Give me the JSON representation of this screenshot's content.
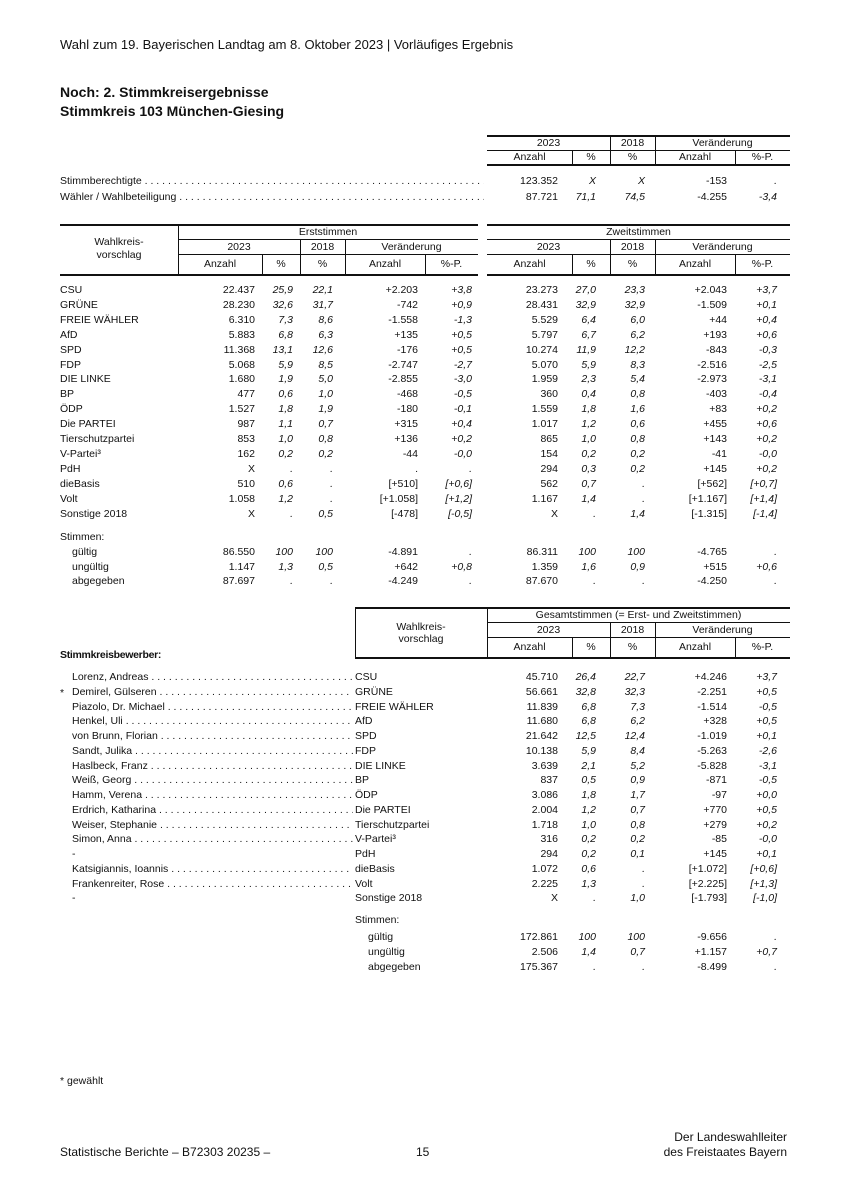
{
  "running_header": "Wahl zum 19. Bayerischen Landtag am 8. Oktober 2023 | Vorläufiges Ergebnis",
  "title1": "Noch: 2. Stimmkreisergebnisse",
  "title2": "Stimmkreis 103 München-Giesing",
  "headers": {
    "year_2023": "2023",
    "year_2018": "2018",
    "change": "Veränderung",
    "count": "Anzahl",
    "pct": "%",
    "pctp": "%-P.",
    "wahlkreis1": "Wahlkreis-",
    "wahlkreis2": "vorschlag",
    "erst": "Erststimmen",
    "zweit": "Zweitstimmen",
    "gesamt": "Gesamtstimmen (= Erst- und Zweitstimmen)",
    "bewerber": "Stimmkreisbewerber:"
  },
  "turnout": [
    {
      "label": "Stimmberechtigte",
      "v": [
        "123.352",
        "X",
        "X",
        "-153",
        "."
      ]
    },
    {
      "label": "Wähler / Wahlbeteiligung",
      "v": [
        "87.721",
        "71,1",
        "74,5",
        "-4.255",
        "-3,4"
      ]
    }
  ],
  "parties": [
    {
      "name": "CSU",
      "erst": [
        "22.437",
        "25,9",
        "22,1",
        "+2.203",
        "+3,8"
      ],
      "zweit": [
        "23.273",
        "27,0",
        "23,3",
        "+2.043",
        "+3,7"
      ]
    },
    {
      "name": "GRÜNE",
      "erst": [
        "28.230",
        "32,6",
        "31,7",
        "-742",
        "+0,9"
      ],
      "zweit": [
        "28.431",
        "32,9",
        "32,9",
        "-1.509",
        "+0,1"
      ]
    },
    {
      "name": "FREIE WÄHLER",
      "erst": [
        "6.310",
        "7,3",
        "8,6",
        "-1.558",
        "-1,3"
      ],
      "zweit": [
        "5.529",
        "6,4",
        "6,0",
        "+44",
        "+0,4"
      ]
    },
    {
      "name": "AfD",
      "erst": [
        "5.883",
        "6,8",
        "6,3",
        "+135",
        "+0,5"
      ],
      "zweit": [
        "5.797",
        "6,7",
        "6,2",
        "+193",
        "+0,6"
      ]
    },
    {
      "name": "SPD",
      "erst": [
        "11.368",
        "13,1",
        "12,6",
        "-176",
        "+0,5"
      ],
      "zweit": [
        "10.274",
        "11,9",
        "12,2",
        "-843",
        "-0,3"
      ]
    },
    {
      "name": "FDP",
      "erst": [
        "5.068",
        "5,9",
        "8,5",
        "-2.747",
        "-2,7"
      ],
      "zweit": [
        "5.070",
        "5,9",
        "8,3",
        "-2.516",
        "-2,5"
      ]
    },
    {
      "name": "DIE LINKE",
      "erst": [
        "1.680",
        "1,9",
        "5,0",
        "-2.855",
        "-3,0"
      ],
      "zweit": [
        "1.959",
        "2,3",
        "5,4",
        "-2.973",
        "-3,1"
      ]
    },
    {
      "name": "BP",
      "erst": [
        "477",
        "0,6",
        "1,0",
        "-468",
        "-0,5"
      ],
      "zweit": [
        "360",
        "0,4",
        "0,8",
        "-403",
        "-0,4"
      ]
    },
    {
      "name": "ÖDP",
      "erst": [
        "1.527",
        "1,8",
        "1,9",
        "-180",
        "-0,1"
      ],
      "zweit": [
        "1.559",
        "1,8",
        "1,6",
        "+83",
        "+0,2"
      ]
    },
    {
      "name": "Die PARTEI",
      "erst": [
        "987",
        "1,1",
        "0,7",
        "+315",
        "+0,4"
      ],
      "zweit": [
        "1.017",
        "1,2",
        "0,6",
        "+455",
        "+0,6"
      ]
    },
    {
      "name": "Tierschutzpartei",
      "erst": [
        "853",
        "1,0",
        "0,8",
        "+136",
        "+0,2"
      ],
      "zweit": [
        "865",
        "1,0",
        "0,8",
        "+143",
        "+0,2"
      ]
    },
    {
      "name": "V-Partei³",
      "erst": [
        "162",
        "0,2",
        "0,2",
        "-44",
        "-0,0"
      ],
      "zweit": [
        "154",
        "0,2",
        "0,2",
        "-41",
        "-0,0"
      ]
    },
    {
      "name": "PdH",
      "erst": [
        "X",
        ".",
        ".",
        ".",
        "."
      ],
      "zweit": [
        "294",
        "0,3",
        "0,2",
        "+145",
        "+0,2"
      ]
    },
    {
      "name": "dieBasis",
      "erst": [
        "510",
        "0,6",
        ".",
        "[+510]",
        "[+0,6]"
      ],
      "zweit": [
        "562",
        "0,7",
        ".",
        "[+562]",
        "[+0,7]"
      ]
    },
    {
      "name": "Volt",
      "erst": [
        "1.058",
        "1,2",
        ".",
        "[+1.058]",
        "[+1,2]"
      ],
      "zweit": [
        "1.167",
        "1,4",
        ".",
        "[+1.167]",
        "[+1,4]"
      ]
    },
    {
      "name": "Sonstige 2018",
      "erst": [
        "X",
        ".",
        "0,5",
        "[-478]",
        "[-0,5]"
      ],
      "zweit": [
        "X",
        ".",
        "1,4",
        "[-1.315]",
        "[-1,4]"
      ]
    }
  ],
  "stimmen_label": "Stimmen:",
  "totals": [
    {
      "name": "gültig",
      "erst": [
        "86.550",
        "100",
        "100",
        "-4.891",
        "."
      ],
      "zweit": [
        "86.311",
        "100",
        "100",
        "-4.765",
        "."
      ]
    },
    {
      "name": "ungültig",
      "erst": [
        "1.147",
        "1,3",
        "0,5",
        "+642",
        "+0,8"
      ],
      "zweit": [
        "1.359",
        "1,6",
        "0,9",
        "+515",
        "+0,6"
      ]
    },
    {
      "name": "abgegeben",
      "erst": [
        "87.697",
        ".",
        ".",
        "-4.249",
        "."
      ],
      "zweit": [
        "87.670",
        ".",
        ".",
        "-4.250",
        "."
      ]
    }
  ],
  "candidates": [
    {
      "mark": "",
      "name": "Lorenz, Andreas",
      "party": "CSU",
      "v": [
        "45.710",
        "26,4",
        "22,7",
        "+4.246",
        "+3,7"
      ]
    },
    {
      "mark": "*",
      "name": "Demirel, Gülseren",
      "party": "GRÜNE",
      "v": [
        "56.661",
        "32,8",
        "32,3",
        "-2.251",
        "+0,5"
      ]
    },
    {
      "mark": "",
      "name": "Piazolo, Dr. Michael",
      "party": "FREIE WÄHLER",
      "v": [
        "11.839",
        "6,8",
        "7,3",
        "-1.514",
        "-0,5"
      ]
    },
    {
      "mark": "",
      "name": "Henkel, Uli",
      "party": "AfD",
      "v": [
        "11.680",
        "6,8",
        "6,2",
        "+328",
        "+0,5"
      ]
    },
    {
      "mark": "",
      "name": "von Brunn, Florian",
      "party": "SPD",
      "v": [
        "21.642",
        "12,5",
        "12,4",
        "-1.019",
        "+0,1"
      ]
    },
    {
      "mark": "",
      "name": "Sandt, Julika",
      "party": "FDP",
      "v": [
        "10.138",
        "5,9",
        "8,4",
        "-5.263",
        "-2,6"
      ]
    },
    {
      "mark": "",
      "name": "Haslbeck, Franz",
      "party": "DIE LINKE",
      "v": [
        "3.639",
        "2,1",
        "5,2",
        "-5.828",
        "-3,1"
      ]
    },
    {
      "mark": "",
      "name": "Weiß, Georg",
      "party": "BP",
      "v": [
        "837",
        "0,5",
        "0,9",
        "-871",
        "-0,5"
      ]
    },
    {
      "mark": "",
      "name": "Hamm, Verena",
      "party": "ÖDP",
      "v": [
        "3.086",
        "1,8",
        "1,7",
        "-97",
        "+0,0"
      ]
    },
    {
      "mark": "",
      "name": "Erdrich, Katharina",
      "party": "Die PARTEI",
      "v": [
        "2.004",
        "1,2",
        "0,7",
        "+770",
        "+0,5"
      ]
    },
    {
      "mark": "",
      "name": "Weiser, Stephanie",
      "party": "Tierschutzpartei",
      "v": [
        "1.718",
        "1,0",
        "0,8",
        "+279",
        "+0,2"
      ]
    },
    {
      "mark": "",
      "name": "Simon, Anna",
      "party": "V-Partei³",
      "v": [
        "316",
        "0,2",
        "0,2",
        "-85",
        "-0,0"
      ]
    },
    {
      "mark": "",
      "name": "-",
      "party": "PdH",
      "v": [
        "294",
        "0,2",
        "0,1",
        "+145",
        "+0,1"
      ]
    },
    {
      "mark": "",
      "name": "Katsigiannis, Ioannis",
      "party": "dieBasis",
      "v": [
        "1.072",
        "0,6",
        ".",
        "[+1.072]",
        "[+0,6]"
      ]
    },
    {
      "mark": "",
      "name": "Frankenreiter, Rose",
      "party": "Volt",
      "v": [
        "2.225",
        "1,3",
        ".",
        "[+2.225]",
        "[+1,3]"
      ]
    },
    {
      "mark": "",
      "name": "-",
      "party": "Sonstige 2018",
      "v": [
        "X",
        ".",
        "1,0",
        "[-1.793]",
        "[-1,0]"
      ]
    }
  ],
  "cand_totals": [
    {
      "name": "gültig",
      "v": [
        "172.861",
        "100",
        "100",
        "-9.656",
        "."
      ]
    },
    {
      "name": "ungültig",
      "v": [
        "2.506",
        "1,4",
        "0,7",
        "+1.157",
        "+0,7"
      ]
    },
    {
      "name": "abgegeben",
      "v": [
        "175.367",
        ".",
        ".",
        "-8.499",
        "."
      ]
    }
  ],
  "footnote": "* gewählt",
  "footer": {
    "series": "Statistische Berichte – B72303 20235 –",
    "page": "15",
    "publisher1": "Der Landeswahlleiter",
    "publisher2": "des Freistaates Bayern"
  }
}
